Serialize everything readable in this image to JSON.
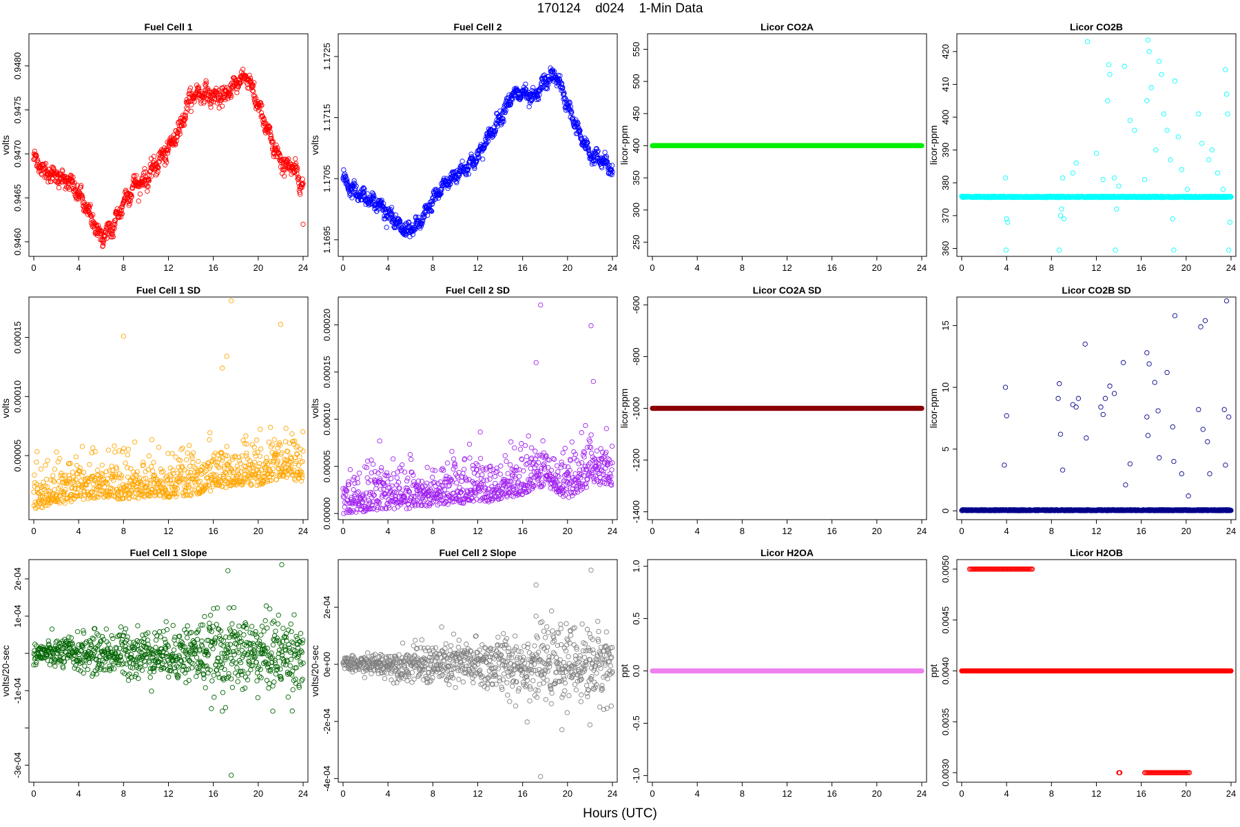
{
  "page": {
    "title": "170124    d024    1-Min Data",
    "x_label": "Hours (UTC)"
  },
  "colors": {
    "fuel_cell_1": "#ff0000",
    "fuel_cell_2": "#0000ff",
    "licor_co2a": "#00ee00",
    "licor_co2b": "#00ffff",
    "fuel_cell_1_sd": "#ffa500",
    "fuel_cell_2_sd": "#a020f0",
    "licor_co2a_sd": "#8b0000",
    "licor_co2b_sd": "#00008b",
    "fuel_cell_1_slope": "#006400",
    "fuel_cell_2_slope": "#808080",
    "licor_h2oa": "#ee82ee",
    "licor_h2ob": "#ff0000"
  },
  "chart_data": [
    {
      "type": "scatter",
      "title": "Fuel Cell 1",
      "ylabel": "volts",
      "xlim": [
        0,
        24
      ],
      "ylim": [
        0.94585,
        0.94835
      ],
      "x_ticks": [
        0,
        4,
        8,
        12,
        16,
        20,
        24
      ],
      "x_tick_labels": [
        "0",
        "4",
        "8",
        "12",
        "16",
        "20",
        "24"
      ],
      "y_ticks": [
        0.946,
        0.9465,
        0.947,
        0.9475,
        0.948
      ],
      "y_tick_labels": [
        "0.9460",
        "0.9465",
        "0.9470",
        "0.9475",
        "0.9480"
      ],
      "color": "#ff0000",
      "series": [
        {
          "x": [
            0,
            1,
            2,
            3,
            4,
            5,
            6,
            7,
            8,
            9,
            10,
            11,
            12,
            13,
            14,
            15,
            16,
            17,
            18,
            19,
            20,
            21,
            22,
            23,
            24
          ],
          "y": [
            0.94695,
            0.9468,
            0.94675,
            0.9467,
            0.94655,
            0.9463,
            0.94605,
            0.94615,
            0.94645,
            0.94665,
            0.9467,
            0.9469,
            0.94705,
            0.9473,
            0.94765,
            0.9477,
            0.94765,
            0.94765,
            0.9478,
            0.9479,
            0.94755,
            0.9472,
            0.9469,
            0.94685,
            0.94665
          ],
          "band": 0.0001
        }
      ],
      "isolated_points": [
        [
          24,
          0.9462
        ]
      ]
    },
    {
      "type": "scatter",
      "title": "Fuel Cell 2",
      "ylabel": "volts",
      "xlim": [
        0,
        24
      ],
      "ylim": [
        1.16925,
        1.17285
      ],
      "x_ticks": [
        0,
        4,
        8,
        12,
        16,
        20,
        24
      ],
      "x_tick_labels": [
        "0",
        "4",
        "8",
        "12",
        "16",
        "20",
        "24"
      ],
      "y_ticks": [
        1.1695,
        1.1705,
        1.1715,
        1.1725
      ],
      "y_tick_labels": [
        "1.1695",
        "1.1705",
        "1.1715",
        "1.1725"
      ],
      "color": "#0000ff",
      "series": [
        {
          "x": [
            0,
            1,
            2,
            3,
            4,
            5,
            6,
            7,
            8,
            9,
            10,
            11,
            12,
            13,
            14,
            15,
            16,
            17,
            18,
            19,
            20,
            21,
            22,
            23,
            24
          ],
          "y": [
            1.1705,
            1.1703,
            1.1702,
            1.1701,
            1.16995,
            1.1697,
            1.16965,
            1.1698,
            1.17015,
            1.1704,
            1.17055,
            1.1707,
            1.17085,
            1.1712,
            1.1715,
            1.17185,
            1.1719,
            1.1718,
            1.1721,
            1.1722,
            1.1717,
            1.17125,
            1.1709,
            1.1708,
            1.17065
          ],
          "band": 0.00012
        }
      ]
    },
    {
      "type": "scatter",
      "title": "Licor CO2A",
      "ylabel": "licor-ppm",
      "xlim": [
        0,
        24
      ],
      "ylim": [
        230,
        572
      ],
      "x_ticks": [
        0,
        4,
        8,
        12,
        16,
        20,
        24
      ],
      "x_tick_labels": [
        "0",
        "4",
        "8",
        "12",
        "16",
        "20",
        "24"
      ],
      "y_ticks": [
        250,
        300,
        350,
        400,
        450,
        500,
        550
      ],
      "y_tick_labels": [
        "250",
        "300",
        "350",
        "400",
        "450",
        "500",
        "550"
      ],
      "color": "#00ee00",
      "series": [
        {
          "constant": 400
        }
      ]
    },
    {
      "type": "scatter",
      "title": "Licor CO2B",
      "ylabel": "licor-ppm",
      "xlim": [
        0,
        24
      ],
      "ylim": [
        358,
        425
      ],
      "x_ticks": [
        0,
        4,
        8,
        12,
        16,
        20,
        24
      ],
      "x_tick_labels": [
        "0",
        "4",
        "8",
        "12",
        "16",
        "20",
        "24"
      ],
      "y_ticks": [
        360,
        370,
        380,
        390,
        400,
        410,
        420
      ],
      "y_tick_labels": [
        "360",
        "370",
        "380",
        "390",
        "400",
        "410",
        "420"
      ],
      "color": "#00ffff",
      "series": [
        {
          "constant": 375.7,
          "band": 0.4
        }
      ],
      "isolated_points": [
        [
          3.9,
          381.5
        ],
        [
          4.0,
          369
        ],
        [
          4.1,
          368
        ],
        [
          3.95,
          359.5
        ],
        [
          8.7,
          359.5
        ],
        [
          8.8,
          370
        ],
        [
          8.9,
          372
        ],
        [
          9.0,
          381.5
        ],
        [
          9.1,
          369
        ],
        [
          9.9,
          383
        ],
        [
          10.2,
          386
        ],
        [
          11.2,
          423
        ],
        [
          12.0,
          389
        ],
        [
          12.6,
          381
        ],
        [
          13.0,
          405
        ],
        [
          13.1,
          416
        ],
        [
          13.2,
          413
        ],
        [
          13.6,
          381.5
        ],
        [
          13.7,
          359.5
        ],
        [
          13.8,
          372
        ],
        [
          14.0,
          379
        ],
        [
          14.5,
          415.5
        ],
        [
          15.0,
          399
        ],
        [
          15.4,
          396
        ],
        [
          16.3,
          381
        ],
        [
          16.5,
          405
        ],
        [
          16.6,
          423.5
        ],
        [
          16.7,
          420
        ],
        [
          16.9,
          409
        ],
        [
          17.3,
          390
        ],
        [
          17.6,
          417
        ],
        [
          17.8,
          413
        ],
        [
          18.0,
          401
        ],
        [
          18.3,
          396
        ],
        [
          18.6,
          387
        ],
        [
          18.8,
          369
        ],
        [
          18.9,
          359.5
        ],
        [
          19.0,
          411
        ],
        [
          19.3,
          394
        ],
        [
          19.6,
          384
        ],
        [
          20.1,
          378
        ],
        [
          21.1,
          401
        ],
        [
          21.4,
          392
        ],
        [
          22.0,
          387
        ],
        [
          22.3,
          390
        ],
        [
          22.8,
          383
        ],
        [
          23.3,
          378
        ],
        [
          23.5,
          414.5
        ],
        [
          23.6,
          407
        ],
        [
          23.7,
          401
        ],
        [
          23.8,
          359.5
        ],
        [
          23.9,
          368
        ]
      ]
    },
    {
      "type": "scatter",
      "title": "Fuel Cell 1 SD",
      "ylabel": "volts",
      "xlim": [
        0,
        24
      ],
      "ylim": [
        -3e-06,
        0.000183
      ],
      "x_ticks": [
        0,
        4,
        8,
        12,
        16,
        20,
        24
      ],
      "x_tick_labels": [
        "0",
        "4",
        "8",
        "12",
        "16",
        "20",
        "24"
      ],
      "y_ticks": [
        5e-05,
        0.0001,
        0.00015
      ],
      "y_tick_labels": [
        "0.00005",
        "0.00010",
        "0.00015"
      ],
      "color": "#ffa500",
      "series": [
        {
          "x": [
            0,
            2,
            4,
            6,
            8,
            10,
            12,
            14,
            16,
            18,
            20,
            22,
            24
          ],
          "y": [
            1.2e-05,
            1.5e-05,
            2e-05,
            2.2e-05,
            2e-05,
            2.2e-05,
            2.2e-05,
            2.3e-05,
            2.8e-05,
            3.2e-05,
            3.2e-05,
            3.8e-05,
            3.5e-05
          ],
          "spread": 3e-05
        }
      ],
      "isolated_points": [
        [
          8.0,
          0.000151
        ],
        [
          17.6,
          0.000181
        ],
        [
          22.0,
          0.000161
        ],
        [
          17.2,
          0.000134
        ],
        [
          16.8,
          0.000124
        ]
      ]
    },
    {
      "type": "scatter",
      "title": "Fuel Cell 2 SD",
      "ylabel": "volts",
      "xlim": [
        0,
        24
      ],
      "ylim": [
        -5e-06,
        0.000228
      ],
      "x_ticks": [
        0,
        4,
        8,
        12,
        16,
        20,
        24
      ],
      "x_tick_labels": [
        "0",
        "4",
        "8",
        "12",
        "16",
        "20",
        "24"
      ],
      "y_ticks": [
        0,
        5e-05,
        0.0001,
        0.00015,
        0.0002
      ],
      "y_tick_labels": [
        "0.00000",
        "0.00005",
        "0.00010",
        "0.00015",
        "0.00020"
      ],
      "color": "#a020f0",
      "series": [
        {
          "x": [
            0,
            2,
            4,
            6,
            8,
            10,
            12,
            14,
            16,
            18,
            20,
            22,
            24
          ],
          "y": [
            1e-05,
            1.2e-05,
            1.5e-05,
            1.5e-05,
            1.8e-05,
            2e-05,
            2.2e-05,
            2.2e-05,
            3e-05,
            4e-05,
            2.5e-05,
            4e-05,
            4e-05
          ],
          "spread": 4e-05
        }
      ],
      "isolated_points": [
        [
          17.6,
          0.000221
        ],
        [
          22.1,
          0.000199
        ],
        [
          17.2,
          0.00016
        ],
        [
          22.3,
          0.00014
        ]
      ]
    },
    {
      "type": "scatter",
      "title": "Licor CO2A SD",
      "ylabel": "licor-ppm",
      "xlim": [
        0,
        24
      ],
      "ylim": [
        -1425,
        -575
      ],
      "x_ticks": [
        0,
        4,
        8,
        12,
        16,
        20,
        24
      ],
      "x_tick_labels": [
        "0",
        "4",
        "8",
        "12",
        "16",
        "20",
        "24"
      ],
      "y_ticks": [
        -1400,
        -1200,
        -1000,
        -800,
        -600
      ],
      "y_tick_labels": [
        "-1400",
        "-1200",
        "-1000",
        "-800",
        "-600"
      ],
      "color": "#8b0000",
      "series": [
        {
          "constant": -1000
        }
      ]
    },
    {
      "type": "scatter",
      "title": "Licor CO2B SD",
      "ylabel": "licor-ppm",
      "xlim": [
        0,
        24
      ],
      "ylim": [
        -0.6,
        17.2
      ],
      "x_ticks": [
        0,
        4,
        8,
        12,
        16,
        20,
        24
      ],
      "x_tick_labels": [
        "0",
        "4",
        "8",
        "12",
        "16",
        "20",
        "24"
      ],
      "y_ticks": [
        0,
        5,
        10,
        15
      ],
      "y_tick_labels": [
        "0",
        "5",
        "10",
        "15"
      ],
      "color": "#00008b",
      "series": [
        {
          "constant": 0.05,
          "band": 0.08
        }
      ],
      "isolated_points": [
        [
          3.9,
          10
        ],
        [
          4.0,
          7.7
        ],
        [
          3.8,
          3.7
        ],
        [
          8.7,
          10.3
        ],
        [
          8.6,
          9.1
        ],
        [
          8.8,
          6.2
        ],
        [
          9.0,
          3.3
        ],
        [
          9.9,
          8.6
        ],
        [
          10.2,
          8.4
        ],
        [
          11.0,
          13.5
        ],
        [
          11.1,
          5.9
        ],
        [
          10.4,
          9.1
        ],
        [
          12.4,
          8.4
        ],
        [
          12.6,
          7.8
        ],
        [
          12.8,
          9.1
        ],
        [
          13.2,
          10.1
        ],
        [
          13.6,
          9.5
        ],
        [
          14.4,
          12
        ],
        [
          14.6,
          2.1
        ],
        [
          15.0,
          3.8
        ],
        [
          16.5,
          12.8
        ],
        [
          16.7,
          11.9
        ],
        [
          16.5,
          7.6
        ],
        [
          16.6,
          6.1
        ],
        [
          17.2,
          10.4
        ],
        [
          17.5,
          8.1
        ],
        [
          17.6,
          4.3
        ],
        [
          18.3,
          11.2
        ],
        [
          18.8,
          6.8
        ],
        [
          19.0,
          15.8
        ],
        [
          18.9,
          4.0
        ],
        [
          19.6,
          3.0
        ],
        [
          21.3,
          14.9
        ],
        [
          21.7,
          15.4
        ],
        [
          21.1,
          8.2
        ],
        [
          21.5,
          6.6
        ],
        [
          21.9,
          5.6
        ],
        [
          23.6,
          17.0
        ],
        [
          23.4,
          8.2
        ],
        [
          23.8,
          7.6
        ],
        [
          23.5,
          3.7
        ],
        [
          22.1,
          3.0
        ],
        [
          20.2,
          1.2
        ]
      ]
    },
    {
      "type": "scatter",
      "title": "Fuel Cell 1 Slope",
      "ylabel": "volts/20-sec",
      "xlim": [
        0,
        24
      ],
      "ylim": [
        -0.000342,
        0.000248
      ],
      "x_ticks": [
        0,
        4,
        8,
        12,
        16,
        20,
        24
      ],
      "x_tick_labels": [
        "0",
        "4",
        "8",
        "12",
        "16",
        "20",
        "24"
      ],
      "y_ticks": [
        -0.0003,
        -0.0002,
        -0.0001,
        0,
        0.0001,
        0.0002
      ],
      "y_tick_labels": [
        "-3e-04",
        "",
        "-1e-04",
        "",
        "1e-04",
        "2e-04"
      ],
      "color": "#006400",
      "series": [
        {
          "x": [
            0,
            4,
            8,
            12,
            16,
            20,
            24
          ],
          "y": [
            0,
            0,
            0,
            0,
            0,
            0,
            0
          ],
          "spread": [
            2.5e-05,
            4.5e-05,
            6e-05,
            6e-05,
            9e-05,
            9e-05,
            9e-05
          ]
        }
      ],
      "isolated_points": [
        [
          17.6,
          -0.000327
        ],
        [
          22.1,
          0.000238
        ],
        [
          17.3,
          0.000222
        ],
        [
          16.8,
          -0.000155
        ],
        [
          21.3,
          -0.000155
        ]
      ]
    },
    {
      "type": "scatter",
      "title": "Fuel Cell 2 Slope",
      "ylabel": "volts/20-sec",
      "xlim": [
        0,
        24
      ],
      "ylim": [
        -0.000408,
        0.000362
      ],
      "x_ticks": [
        0,
        4,
        8,
        12,
        16,
        20,
        24
      ],
      "x_tick_labels": [
        "0",
        "4",
        "8",
        "12",
        "16",
        "20",
        "24"
      ],
      "y_ticks": [
        -0.0004,
        -0.0002,
        0,
        0.0002
      ],
      "y_tick_labels": [
        "-4e-04",
        "-2e-04",
        "0e+00",
        "2e-04"
      ],
      "color": "#808080",
      "series": [
        {
          "x": [
            0,
            4,
            8,
            12,
            16,
            20,
            24
          ],
          "y": [
            0,
            0,
            0,
            0,
            0,
            0,
            0
          ],
          "spread": [
            2e-05,
            4e-05,
            7e-05,
            8e-05,
            0.0001,
            0.00011,
            0.00012
          ]
        }
      ],
      "isolated_points": [
        [
          17.6,
          -0.000393
        ],
        [
          22.1,
          0.00033
        ],
        [
          17.2,
          0.000278
        ],
        [
          16.4,
          -0.000202
        ],
        [
          19.5,
          -0.000229
        ],
        [
          22.0,
          -0.000212
        ]
      ]
    },
    {
      "type": "scatter",
      "title": "Licor H2OA",
      "ylabel": "ppt",
      "xlim": [
        0,
        24
      ],
      "ylim": [
        -1.05,
        1.05
      ],
      "x_ticks": [
        0,
        4,
        8,
        12,
        16,
        20,
        24
      ],
      "x_tick_labels": [
        "0",
        "4",
        "8",
        "12",
        "16",
        "20",
        "24"
      ],
      "y_ticks": [
        -1,
        -0.5,
        0,
        0.5,
        1
      ],
      "y_tick_labels": [
        "-1.0",
        "-0.5",
        "0.0",
        "0.5",
        "1.0"
      ],
      "color": "#ee82ee",
      "series": [
        {
          "constant": 0
        }
      ]
    },
    {
      "type": "scatter",
      "title": "Licor H2OB",
      "ylabel": "ppt",
      "xlim": [
        0,
        24
      ],
      "ylim": [
        0.00292,
        0.00508
      ],
      "x_ticks": [
        0,
        4,
        8,
        12,
        16,
        20,
        24
      ],
      "x_tick_labels": [
        "0",
        "4",
        "8",
        "12",
        "16",
        "20",
        "24"
      ],
      "y_ticks": [
        0.003,
        0.0035,
        0.004,
        0.0045,
        0.005
      ],
      "y_tick_labels": [
        "0.0030",
        "0.0035",
        "0.0040",
        "0.0045",
        "0.0050"
      ],
      "color": "#ff0000",
      "series": [
        {
          "constant": 0.004
        }
      ],
      "clusters": [
        {
          "value": 0.005,
          "x_from": 0.7,
          "x_to": 6.3
        },
        {
          "value": 0.003,
          "x_from": 16.3,
          "x_to": 20.3
        },
        {
          "value": 0.003,
          "x_from": 14.0,
          "x_to": 14.1
        }
      ]
    }
  ]
}
